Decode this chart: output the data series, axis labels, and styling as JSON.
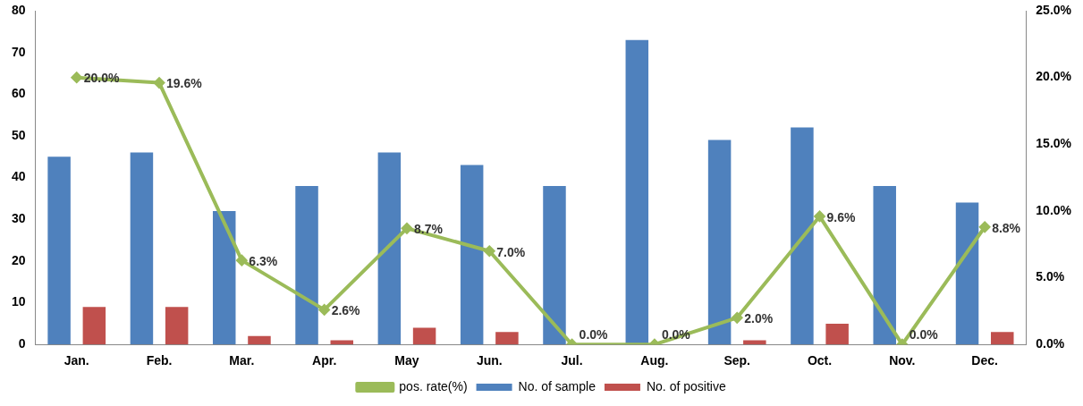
{
  "chart_data": {
    "type": "bar",
    "categories": [
      "Jan.",
      "Feb.",
      "Mar.",
      "Apr.",
      "May",
      "Jun.",
      "Jul.",
      "Aug.",
      "Sep.",
      "Oct.",
      "Nov.",
      "Dec."
    ],
    "series": [
      {
        "name": "No. of sample",
        "color": "#4f81bd",
        "values": [
          45,
          46,
          32,
          38,
          46,
          43,
          38,
          73,
          49,
          52,
          38,
          34
        ]
      },
      {
        "name": "No. of positive",
        "color": "#c0504d",
        "values": [
          9,
          9,
          2,
          1,
          4,
          3,
          0,
          0,
          1,
          5,
          0,
          3
        ]
      },
      {
        "name": "pos. rate(%)",
        "type": "line",
        "axis": "y2",
        "color": "#9bbb59",
        "marker": "diamond",
        "values": [
          20.0,
          19.6,
          6.3,
          2.6,
          8.7,
          7.0,
          0.0,
          0.0,
          2.0,
          9.6,
          0.0,
          8.8
        ],
        "value_labels": [
          "20.0%",
          "19.6%",
          "6.3%",
          "2.6%",
          "8.7%",
          "7.0%",
          "0.0%",
          "0.0%",
          "2.0%",
          "9.6%",
          "0.0%",
          "8.8%"
        ]
      }
    ],
    "ylim": [
      0,
      80
    ],
    "yticks": [
      0,
      10,
      20,
      30,
      40,
      50,
      60,
      70,
      80
    ],
    "y2lim": [
      0,
      25
    ],
    "y2ticks": [
      {
        "value": 0,
        "label": "0.0%"
      },
      {
        "value": 5,
        "label": "5.0%"
      },
      {
        "value": 10,
        "label": "10.0%"
      },
      {
        "value": 15,
        "label": "15.0%"
      },
      {
        "value": 20,
        "label": "20.0%"
      },
      {
        "value": 25,
        "label": "25.0%"
      }
    ],
    "grid": false,
    "legend": "bottom"
  }
}
